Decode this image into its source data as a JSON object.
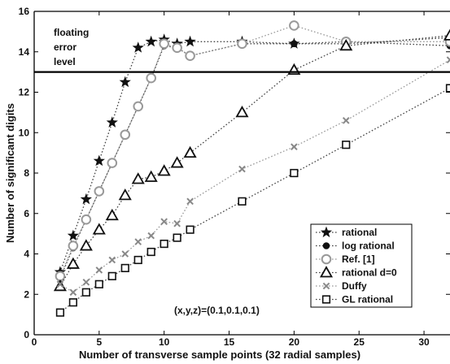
{
  "chart_data": {
    "type": "line",
    "title": "",
    "xlabel": "Number of transverse sample points (32 radial samples)",
    "ylabel": "Number of significant digits",
    "xlim": [
      0,
      32
    ],
    "ylim": [
      0,
      16
    ],
    "x_ticks": [
      "0",
      "5",
      "10",
      "15",
      "20",
      "25",
      "30"
    ],
    "y_ticks": [
      "0",
      "2",
      "4",
      "6",
      "8",
      "10",
      "12",
      "14",
      "16"
    ],
    "grid": false,
    "legend_position": "bottom-right",
    "reference_line": {
      "y": 13,
      "label_lines": [
        "floating",
        "error",
        "level"
      ]
    },
    "annotation": "(x,y,z)=(0.1,0.1,0.1)",
    "series": [
      {
        "name": "rational",
        "marker": "star",
        "color": "#111111",
        "line": "#444444",
        "x": [
          2,
          3,
          4,
          5,
          6,
          7,
          8,
          9,
          10,
          11,
          12,
          16,
          20,
          24,
          32
        ],
        "y": [
          3.1,
          4.9,
          6.7,
          8.6,
          10.5,
          12.5,
          14.2,
          14.5,
          14.6,
          14.4,
          14.5,
          14.5,
          14.4,
          14.4,
          14.7
        ]
      },
      {
        "name": "log rational",
        "marker": "dot",
        "color": "#111111",
        "line": "#444444",
        "x": [
          2,
          3,
          4,
          5,
          6,
          7,
          8,
          9,
          10,
          11,
          12,
          16,
          20,
          24,
          32
        ],
        "y": [
          2.8,
          4.3,
          5.7,
          7.1,
          8.5,
          9.9,
          11.3,
          12.7,
          14.3,
          14.2,
          13.8,
          14.4,
          14.4,
          14.5,
          14.3
        ]
      },
      {
        "name": "Ref. [1]",
        "marker": "circle",
        "color": "#999999",
        "line": "#999999",
        "x": [
          2,
          3,
          4,
          5,
          6,
          7,
          8,
          9,
          10,
          11,
          12,
          16,
          20,
          24,
          32
        ],
        "y": [
          2.9,
          4.4,
          5.7,
          7.1,
          8.5,
          9.9,
          11.3,
          12.7,
          14.4,
          14.2,
          13.8,
          14.4,
          15.3,
          14.5,
          14.5
        ]
      },
      {
        "name": "rational d=0",
        "marker": "triangle",
        "color": "#111111",
        "line": "#444444",
        "x": [
          2,
          3,
          4,
          5,
          6,
          7,
          8,
          9,
          10,
          11,
          12,
          16,
          20,
          24,
          32
        ],
        "y": [
          2.4,
          3.5,
          4.4,
          5.2,
          5.9,
          6.9,
          7.7,
          7.8,
          8.1,
          8.5,
          9.0,
          11.0,
          13.1,
          14.3,
          14.8
        ]
      },
      {
        "name": "Duffy",
        "marker": "x",
        "color": "#888888",
        "line": "#999999",
        "x": [
          2,
          3,
          4,
          5,
          6,
          7,
          8,
          9,
          10,
          11,
          12,
          16,
          20,
          24,
          32
        ],
        "y": [
          2.5,
          2.1,
          2.6,
          3.2,
          3.7,
          4.0,
          4.6,
          4.9,
          5.6,
          5.5,
          6.6,
          8.2,
          9.3,
          10.6,
          13.6
        ]
      },
      {
        "name": "GL rational",
        "marker": "square",
        "color": "#111111",
        "line": "#444444",
        "x": [
          2,
          3,
          4,
          5,
          6,
          7,
          8,
          9,
          10,
          11,
          12,
          16,
          20,
          24,
          32
        ],
        "y": [
          1.1,
          1.6,
          2.1,
          2.5,
          2.9,
          3.3,
          3.7,
          4.1,
          4.5,
          4.8,
          5.2,
          6.6,
          8.0,
          9.4,
          12.2
        ]
      }
    ]
  }
}
